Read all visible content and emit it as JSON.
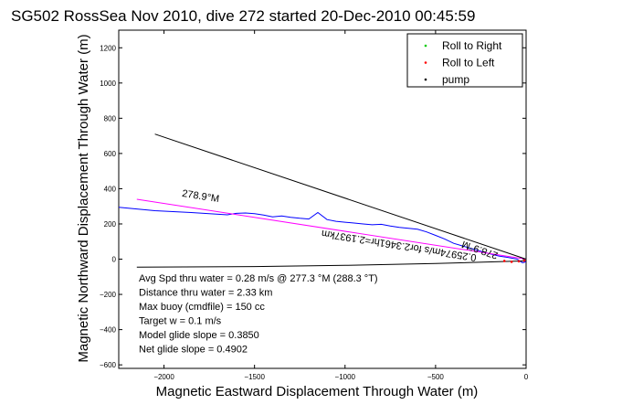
{
  "chart_data": {
    "type": "line",
    "title": "SG502 RossSea Nov 2010, dive 272 started 20-Dec-2010 00:45:59",
    "xlabel": "Magnetic Eastward Displacement Through Water (m)",
    "ylabel": "Magnetic Northward Displacement Through Water (m)",
    "xlim": [
      -2250,
      0
    ],
    "ylim": [
      -620,
      1300
    ],
    "xticks": [
      -2000,
      -1500,
      -1000,
      -500,
      0
    ],
    "xtick_labels": [
      "−2000",
      "−1500",
      "−1000",
      "−500",
      "0"
    ],
    "yticks": [
      -600,
      -400,
      -200,
      0,
      200,
      400,
      600,
      800,
      1000,
      1200
    ],
    "ytick_labels": [
      "−600",
      "−400",
      "−200",
      "0",
      "200",
      "400",
      "600",
      "800",
      "1000",
      "1200"
    ],
    "grid": false,
    "legend_position": "top-right",
    "legend": [
      {
        "label": "Roll to Right",
        "color": "#00cc00",
        "marker": "dot"
      },
      {
        "label": "Roll to Left",
        "color": "#ff0000",
        "marker": "dot"
      },
      {
        "label": "pump",
        "color": "#000000",
        "marker": "dot"
      }
    ],
    "series": [
      {
        "style": "track",
        "color": "#0000ff",
        "x": [
          -2250,
          -2150,
          -2050,
          -1950,
          -1850,
          -1750,
          -1650,
          -1600,
          -1550,
          -1500,
          -1450,
          -1400,
          -1350,
          -1300,
          -1250,
          -1200,
          -1150,
          -1100,
          -1050,
          -1000,
          -950,
          -900,
          -850,
          -800,
          -750,
          -700,
          -650,
          -600,
          -550,
          -500,
          -450,
          -400,
          -350,
          -300,
          -250,
          -200,
          -150,
          -100,
          -50,
          -20,
          0
        ],
        "y": [
          295,
          285,
          275,
          270,
          265,
          258,
          252,
          260,
          262,
          258,
          250,
          240,
          245,
          238,
          232,
          228,
          265,
          225,
          215,
          210,
          205,
          200,
          195,
          198,
          188,
          180,
          175,
          170,
          155,
          135,
          115,
          90,
          75,
          60,
          45,
          30,
          18,
          10,
          0,
          -20,
          -15
        ]
      },
      {
        "style": "line",
        "color": "#ff00ff",
        "x": [
          -2150,
          0
        ],
        "y": [
          340,
          0
        ]
      },
      {
        "style": "line",
        "color": "#000000",
        "x": [
          -2050,
          0
        ],
        "y": [
          710,
          0
        ]
      },
      {
        "style": "line",
        "color": "#000000",
        "x": [
          -2150,
          -1500,
          -1000,
          -500,
          0
        ],
        "y": [
          -45,
          -42,
          -35,
          -25,
          -10
        ]
      },
      {
        "style": "markers",
        "color": "#ff0000",
        "x": [
          -120,
          -80,
          -40,
          -10
        ],
        "y": [
          -10,
          -15,
          -12,
          -8
        ]
      }
    ],
    "annotations": [
      {
        "text": "278.9°M",
        "x": -1800,
        "y": 340,
        "rotation_deg": 9
      },
      {
        "text": "278.9°M",
        "x": -250,
        "y": 70,
        "rotation_deg": 199
      },
      {
        "text": "0.25974m/s for2.3461hr=2.1937km",
        "x": -700,
        "y": 95,
        "rotation_deg": 189
      }
    ],
    "text_box": [
      "Avg Spd thru water =  0.28 m/s @ 277.3   °M (288.3 °T)",
      "Distance thru water =  2.33 km",
      "Max buoy (cmdfile) = 150 cc",
      "Target w = 0.1 m/s",
      "Model glide slope = 0.3850",
      "Net glide slope = 0.4902"
    ]
  }
}
